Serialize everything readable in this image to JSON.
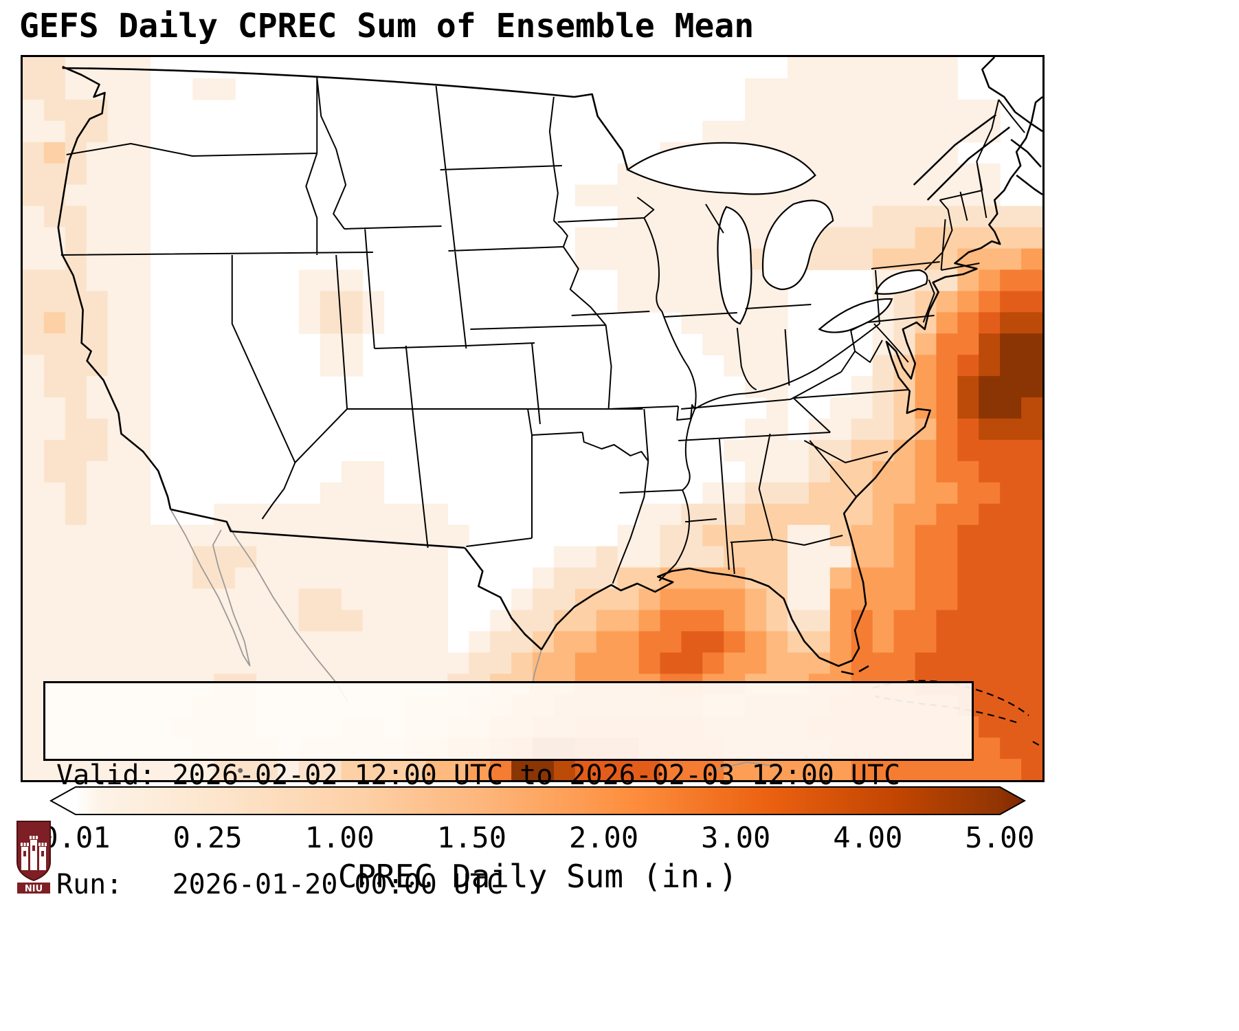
{
  "title": "GEFS Daily CPREC Sum of Ensemble Mean",
  "info_box": {
    "valid_line": "Valid: 2026-02-02 12:00 UTC to 2026-02-03 12:00 UTC",
    "run_line": "Run:   2026-01-20 00:00 UTC"
  },
  "colorbar": {
    "label": "CPREC Daily Sum (in.)",
    "ticks": [
      "0.01",
      "0.25",
      "1.00",
      "1.50",
      "2.00",
      "3.00",
      "4.00",
      "5.00"
    ],
    "under_color": "#ffffff",
    "over_color": "#7f2704"
  },
  "logo": {
    "text": "NIU",
    "color": "#7d1f24"
  },
  "chart_data": {
    "type": "heatmap",
    "title": "GEFS Daily CPREC Sum of Ensemble Mean",
    "variable": "CPREC Daily Sum (in.)",
    "units": "inches",
    "valid": "2026-02-02 12:00 UTC to 2026-02-03 12:00 UTC",
    "run": "2026-01-20 00:00 UTC",
    "region": "Continental United States with adjacent Canada, Mexico, Gulf of Mexico, Cuba and western Atlantic",
    "colorbar_ticks": [
      0.01,
      0.25,
      1.0,
      1.5,
      2.0,
      3.0,
      4.0,
      5.0
    ],
    "colorbar_extend": "both",
    "legend_position": "bottom",
    "palette": [
      "#ffffff",
      "#fdf0e4",
      "#fbe3cb",
      "#fdd0a6",
      "#fdb97e",
      "#fd9e56",
      "#f47d33",
      "#e35d1a",
      "#bc4a09",
      "#8a3503"
    ],
    "level_values_in": [
      0.0,
      0.01,
      0.1,
      0.25,
      0.75,
      1.25,
      2.0,
      3.0,
      4.0,
      5.0
    ],
    "grid_cols": 48,
    "grid_rows": 34,
    "intensity_rows": [
      "221111000000000000000000000000000000111111110000",
      "221111001100000000000000000000000011111111110000",
      "122211000000000000000000000000000011111111111100",
      "112211000000000000000000000000001111111111111100",
      "232111000000000000000000000000111111111111110000",
      "222111000000000000000000000011111111111111111100",
      "221111000000000000000000001111111111111111111100",
      "122111000000000000000000000011111111111122222222",
      "112111000000000000000000001111111111222222333333",
      "112111000000000000000000001111111122222233334445",
      "222111000000011100000000000011111111000011224566",
      "222211000000012210000000000011111111000012345677",
      "232211000000012210000000000000011111000012356788",
      "222211000000001100000000000000001111000012466899",
      "122211000000001100000000000000000111000023567899",
      "122111000000000000000000000000000011000123568999",
      "112111000000000000000000000000000001001123568998",
      "112211000000000000000000000000000011011223467888",
      "122211000000000000000000000000000111122334567777",
      "122111000000000110000000000000000011123344566777",
      "112111000000001110000000000000001122233344556677",
      "112111000111111111110000000001122233333345566777",
      "111111111111111111111000000011223333113445667777",
      "111111112221111111110000011211222333111445667777",
      "111111112211111111110000122233444433114555667777",
      "111111111111122111110001223334555543115555667777",
      "111111111111122211110012233445666543225656677777",
      "111111111111111111110122344556677654335656677777",
      "111111111111111111111223445556776554445666777777",
      "111111111221111111112233445555665544455666777777",
      "111111112221111111222334455555554455556666667777",
      "111111122221111221223344556666665555566666666777",
      "111111112222122222334456887776666555556666666677",
      "111111111222122333344569987777666555555666666667"
    ]
  }
}
